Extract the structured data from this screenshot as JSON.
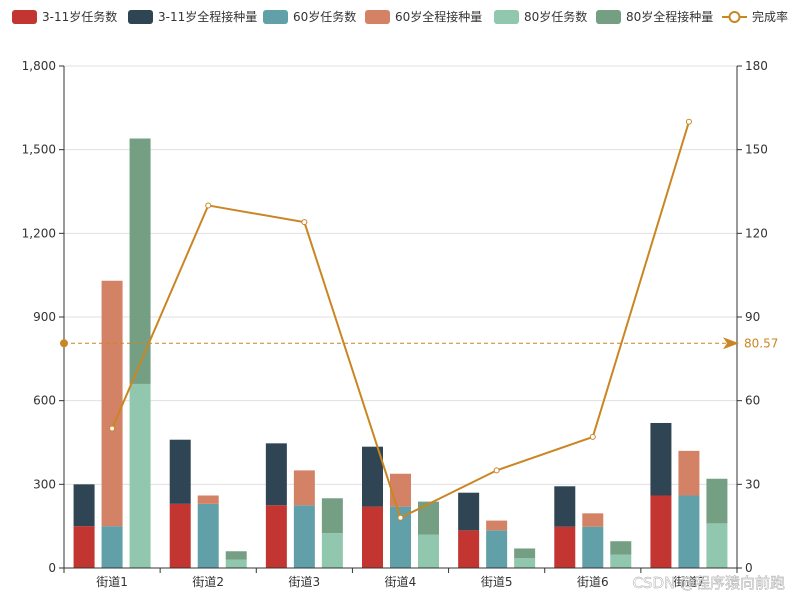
{
  "chart_data": {
    "type": "bar",
    "categories": [
      "街道1",
      "街道2",
      "街道3",
      "街道4",
      "街道5",
      "街道6",
      "街道7"
    ],
    "stacks": [
      {
        "id": "3-11",
        "series": [
          {
            "name": "3-11岁任务数",
            "color": "#c23531",
            "values": [
              150,
              230,
              225,
              220,
              135,
              148,
              260
            ]
          },
          {
            "name": "3-11岁全程接种量",
            "color": "#2f4554",
            "values": [
              150,
              230,
              222,
              215,
              135,
              145,
              260
            ]
          }
        ]
      },
      {
        "id": "60",
        "series": [
          {
            "name": "60岁任务数",
            "color": "#61a0a8",
            "values": [
              150,
              230,
              225,
              220,
              135,
              148,
              260
            ]
          },
          {
            "name": "60岁全程接种量",
            "color": "#d48265",
            "values": [
              880,
              30,
              125,
              118,
              35,
              48,
              160
            ]
          }
        ]
      },
      {
        "id": "80",
        "series": [
          {
            "name": "80岁任务数",
            "color": "#91c7ae",
            "values": [
              660,
              30,
              125,
              120,
              35,
              48,
              160
            ]
          },
          {
            "name": "80岁全程接种量",
            "color": "#749f83",
            "values": [
              880,
              30,
              125,
              118,
              35,
              48,
              160
            ]
          }
        ]
      }
    ],
    "line": {
      "name": "完成率",
      "color": "#ca8622",
      "values": [
        50,
        130,
        124,
        18,
        35,
        47,
        160
      ]
    },
    "mark_line": {
      "value": 80.57,
      "label": "80.57"
    },
    "y_left": {
      "min": 0,
      "max": 1800,
      "ticks": [
        "0",
        "300",
        "600",
        "900",
        "1,200",
        "1,500",
        "1,800"
      ]
    },
    "y_right": {
      "min": 0,
      "max": 180,
      "ticks": [
        "0",
        "30",
        "60",
        "90",
        "120",
        "150",
        "180"
      ]
    },
    "legend_position": "top",
    "watermark": "CSDN @程序猿向前跑"
  }
}
